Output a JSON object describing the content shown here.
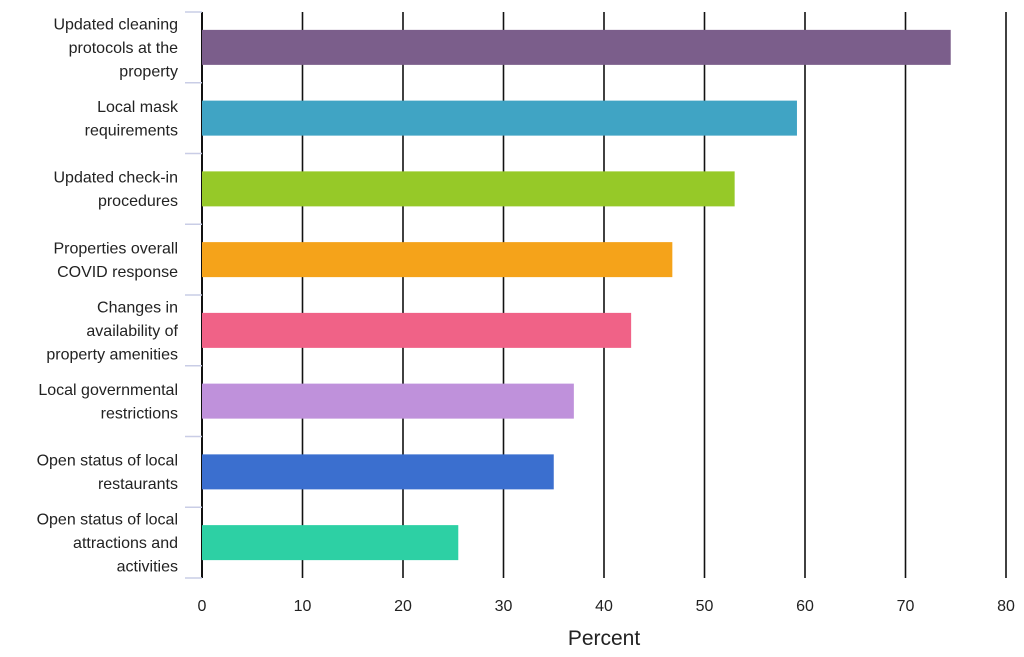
{
  "chart_data": {
    "type": "bar",
    "orientation": "horizontal",
    "categories": [
      [
        "Updated cleaning",
        "protocols at the",
        "property"
      ],
      [
        "Local mask",
        "requirements"
      ],
      [
        "Updated check-in",
        "procedures"
      ],
      [
        "Properties overall",
        "COVID response"
      ],
      [
        "Changes in",
        "availability of",
        "property amenities"
      ],
      [
        "Local governmental",
        "restrictions"
      ],
      [
        "Open status of local",
        "restaurants"
      ],
      [
        "Open status of local",
        "attractions and",
        "activities"
      ]
    ],
    "values": [
      74.5,
      59.2,
      53.0,
      46.8,
      42.7,
      37.0,
      35.0,
      25.5
    ],
    "colors": [
      "#7b5e8b",
      "#40a4c4",
      "#96c928",
      "#f5a31a",
      "#f06287",
      "#bf91db",
      "#3b6fcf",
      "#2dd0a4"
    ],
    "xlabel": "Percent",
    "ylabel": "",
    "title": "",
    "xlim": [
      0,
      80
    ],
    "xticks": [
      0,
      10,
      20,
      30,
      40,
      50,
      60,
      70,
      80
    ],
    "grid": "vertical",
    "legend": "none"
  }
}
